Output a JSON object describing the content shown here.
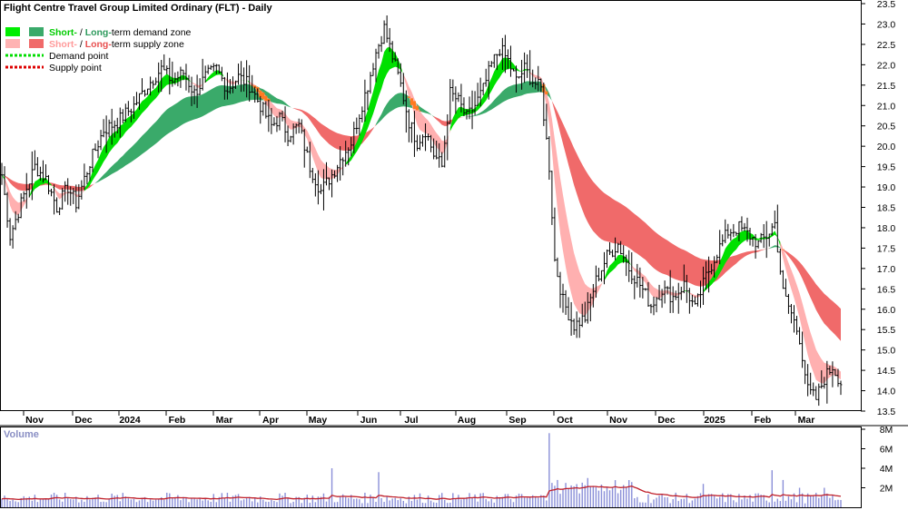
{
  "title": "Flight Centre Travel Group Limited Ordinary (FLT) - Daily",
  "legend": [
    {
      "short_label": "Short-",
      "sep": " / ",
      "long_label": "Long-",
      "rest": "term demand zone",
      "short_color": "#00ee00",
      "long_color": "#3aaa6a"
    },
    {
      "short_label": "Short-",
      "sep": " / ",
      "long_label": "Long-",
      "rest": "term supply zone",
      "short_color": "#ffb3b3",
      "long_color": "#f06a6a"
    },
    {
      "label": "Demand point",
      "color": "#00dd00"
    },
    {
      "label": "Supply point",
      "color": "#dd0000"
    }
  ],
  "chart_data": {
    "type": "line",
    "price_axis": {
      "min": 13.5,
      "max": 23.5,
      "step": 0.5,
      "ticks": [
        "13.5",
        "14.0",
        "14.5",
        "15.0",
        "15.5",
        "16.0",
        "16.5",
        "17.0",
        "17.5",
        "18.0",
        "18.5",
        "19.0",
        "19.5",
        "20.0",
        "20.5",
        "21.0",
        "21.5",
        "22.0",
        "22.5",
        "23.0",
        "23.5"
      ]
    },
    "months": [
      "Nov",
      "Dec",
      "2024",
      "Feb",
      "Mar",
      "Apr",
      "May",
      "Jun",
      "Jul",
      "Aug",
      "Sep",
      "Oct",
      "Nov",
      "Dec",
      "2025",
      "Feb",
      "Mar"
    ],
    "price_path": [
      [
        0,
        19.3
      ],
      [
        3,
        17.8
      ],
      [
        8,
        18.8
      ],
      [
        12,
        19.5
      ],
      [
        16,
        19.2
      ],
      [
        20,
        18.5
      ],
      [
        24,
        19.0
      ],
      [
        27,
        18.6
      ],
      [
        32,
        19.6
      ],
      [
        37,
        20.4
      ],
      [
        42,
        20.6
      ],
      [
        48,
        21.0
      ],
      [
        53,
        21.5
      ],
      [
        58,
        21.9
      ],
      [
        62,
        21.6
      ],
      [
        66,
        21.8
      ],
      [
        70,
        21.3
      ],
      [
        74,
        21.7
      ],
      [
        78,
        21.9
      ],
      [
        82,
        21.4
      ],
      [
        86,
        21.7
      ],
      [
        90,
        21.5
      ],
      [
        94,
        21.0
      ],
      [
        98,
        20.5
      ],
      [
        101,
        20.7
      ],
      [
        104,
        20.3
      ],
      [
        108,
        20.5
      ],
      [
        112,
        19.5
      ],
      [
        116,
        18.9
      ],
      [
        120,
        19.3
      ],
      [
        124,
        19.8
      ],
      [
        127,
        20.1
      ],
      [
        130,
        20.8
      ],
      [
        133,
        21.5
      ],
      [
        136,
        22.3
      ],
      [
        139,
        22.9
      ],
      [
        142,
        22.2
      ],
      [
        145,
        21.5
      ],
      [
        148,
        20.6
      ],
      [
        151,
        20.1
      ],
      [
        154,
        20.4
      ],
      [
        157,
        19.8
      ],
      [
        160,
        19.5
      ],
      [
        163,
        21.3
      ],
      [
        166,
        21.1
      ],
      [
        169,
        20.7
      ],
      [
        172,
        21.0
      ],
      [
        175,
        21.4
      ],
      [
        178,
        22.0
      ],
      [
        181,
        22.4
      ],
      [
        184,
        22.1
      ],
      [
        187,
        21.6
      ],
      [
        190,
        21.9
      ],
      [
        193,
        21.6
      ],
      [
        196,
        21.4
      ],
      [
        199,
        19.5
      ],
      [
        201,
        17.2
      ],
      [
        204,
        16.2
      ],
      [
        208,
        15.6
      ],
      [
        212,
        15.8
      ],
      [
        216,
        16.7
      ],
      [
        220,
        17.3
      ],
      [
        224,
        17.6
      ],
      [
        228,
        17.0
      ],
      [
        232,
        16.6
      ],
      [
        236,
        16.1
      ],
      [
        240,
        16.5
      ],
      [
        244,
        16.3
      ],
      [
        248,
        16.6
      ],
      [
        252,
        16.0
      ],
      [
        256,
        16.8
      ],
      [
        260,
        17.4
      ],
      [
        264,
        17.9
      ],
      [
        268,
        18.0
      ],
      [
        272,
        17.8
      ],
      [
        275,
        17.6
      ],
      [
        278,
        17.8
      ],
      [
        281,
        18.1
      ],
      [
        284,
        16.4
      ],
      [
        287,
        15.9
      ],
      [
        290,
        15.3
      ],
      [
        293,
        14.0
      ],
      [
        296,
        13.8
      ],
      [
        299,
        14.3
      ],
      [
        302,
        14.6
      ],
      [
        305,
        14.2
      ]
    ],
    "volume_axis": {
      "max": 8,
      "ticks": [
        "2M",
        "4M",
        "6M",
        "8M"
      ]
    },
    "volume_label": "Volume"
  }
}
